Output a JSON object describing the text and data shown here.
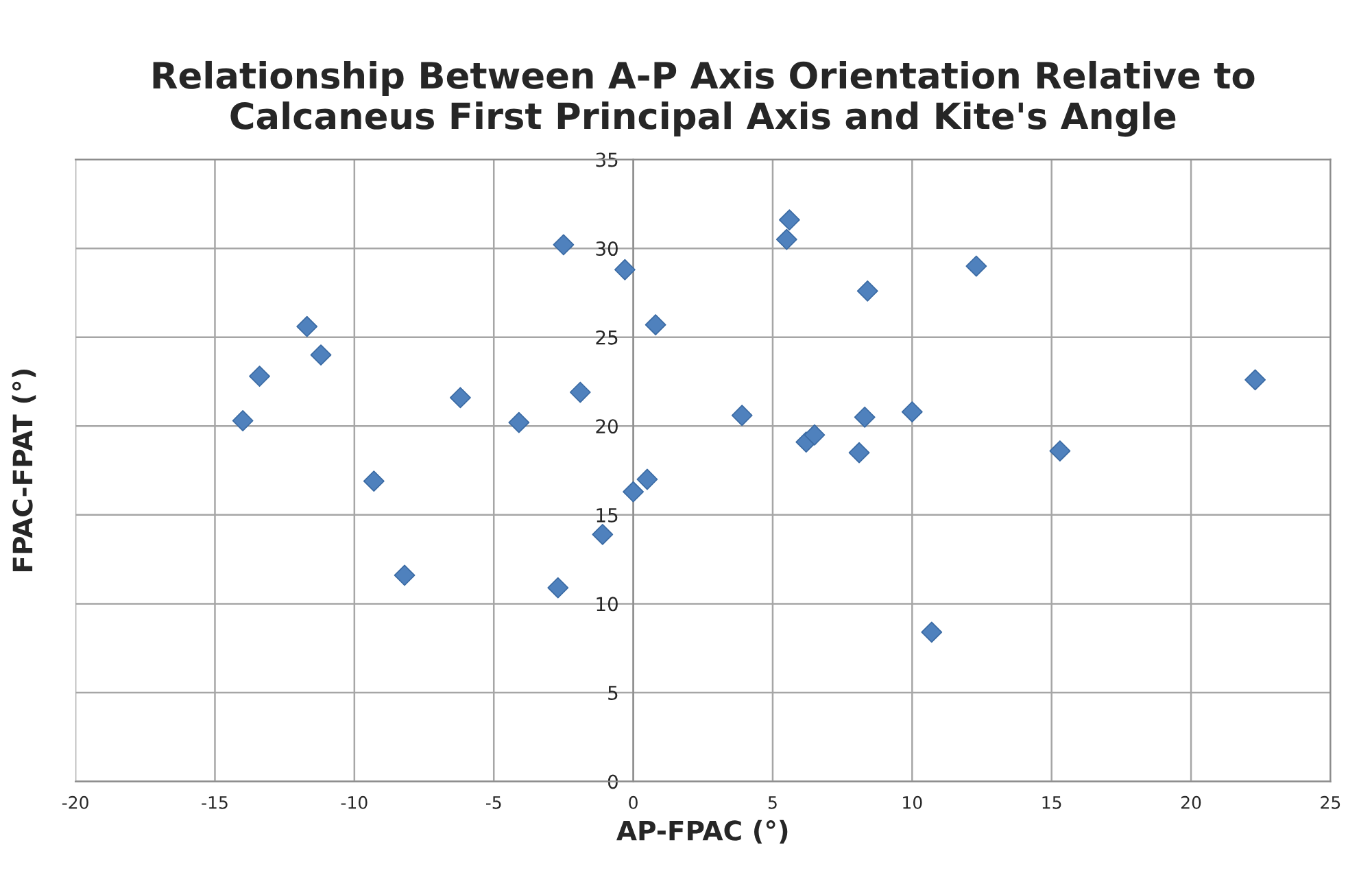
{
  "chart_data": {
    "type": "scatter",
    "title": "Relationship Between A-P Axis Orientation Relative to\nCalcaneus First Principal Axis and Kite's Angle",
    "xlabel": "AP-FPAC (°)",
    "ylabel": "FPAC-FPAT (°)",
    "series": [
      {
        "color": "#4f81bd",
        "x": [
          -14.0,
          -13.4,
          -11.7,
          -11.2,
          -9.3,
          -8.2,
          -6.2,
          -4.1,
          -1.9,
          -2.5,
          -0.3,
          -1.1,
          -2.7,
          0.0,
          0.5,
          0.8,
          3.9,
          5.6,
          5.5,
          6.2,
          6.5,
          8.1,
          8.3,
          8.4,
          10.0,
          10.7,
          12.3,
          15.3,
          22.3
        ],
        "values": [
          20.3,
          22.8,
          25.6,
          24.0,
          16.9,
          11.6,
          21.6,
          20.2,
          21.9,
          30.2,
          28.8,
          13.9,
          10.9,
          16.3,
          17.0,
          25.7,
          20.6,
          31.6,
          30.5,
          19.1,
          19.5,
          18.5,
          20.5,
          27.6,
          20.8,
          8.4,
          29.0,
          18.6,
          22.6
        ]
      }
    ],
    "xlim": [
      -20,
      25
    ],
    "xticks": [
      -20,
      -15,
      -10,
      -5,
      0,
      5,
      10,
      15,
      20,
      25
    ],
    "ylim": [
      0,
      35
    ],
    "yticks": [
      0,
      5,
      10,
      15,
      20,
      25,
      30,
      35
    ],
    "grid": true,
    "marker": "diamond"
  }
}
